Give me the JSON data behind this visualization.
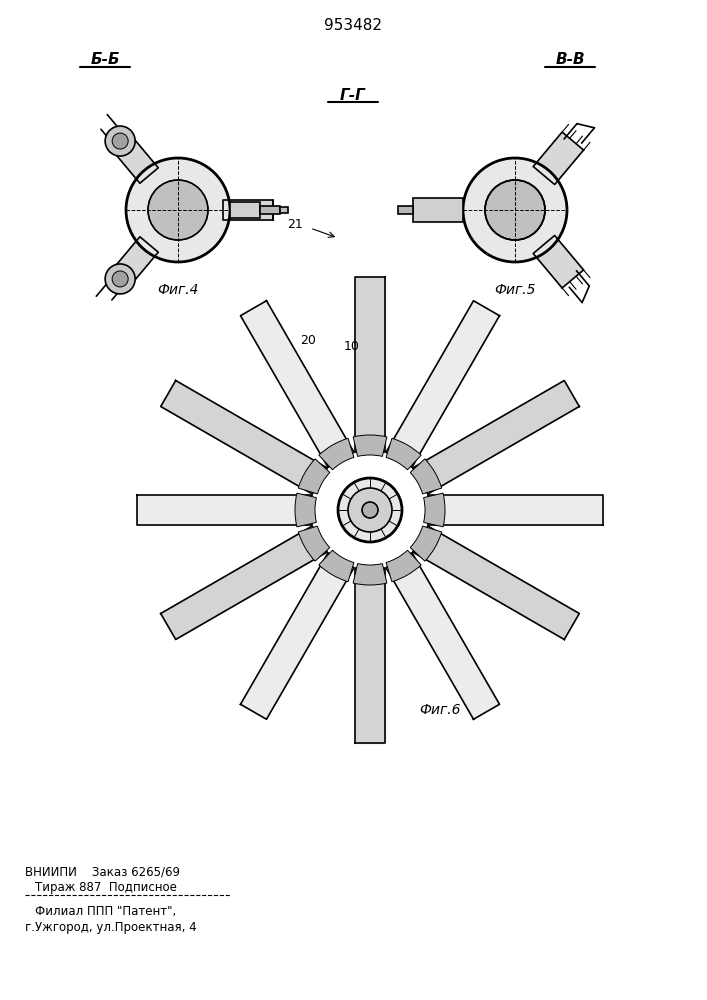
{
  "patent_number": "953482",
  "fig4_label": "Фиг.4",
  "fig5_label": "Фиг.5",
  "fig6_label": "Фиг.6",
  "section_bb": "Б-Б",
  "section_vv": "В-В",
  "section_gg": "Г-Г",
  "label_20": "20",
  "label_10": "10",
  "label_21": "21",
  "footer_line1": "ВНИИПИ    Заказ 6265/69",
  "footer_line2": "Тираж 887  Подписное",
  "footer_line3": "Филиал ППП \"Патент\",",
  "footer_line4": "г.Ужгород, ул.Проектная, 4",
  "bg_color": "#ffffff",
  "line_color": "#000000",
  "hatch_color": "#000000",
  "fill_color": "#d0d0d0"
}
